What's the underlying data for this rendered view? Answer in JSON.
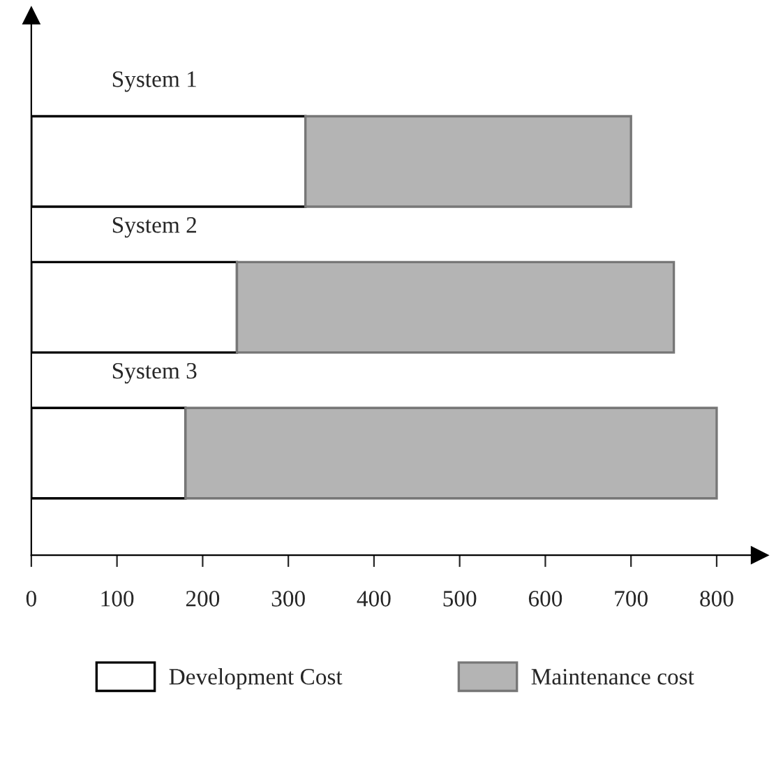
{
  "chart_data": {
    "type": "bar",
    "orientation": "horizontal",
    "stacked": true,
    "categories": [
      "System 1",
      "System 2",
      "System 3"
    ],
    "series": [
      {
        "name": "Development Cost",
        "color": "#ffffff",
        "values": [
          320,
          240,
          180
        ]
      },
      {
        "name": "Maintenance cost",
        "color": "#b4b4b4",
        "values": [
          380,
          510,
          620
        ]
      }
    ],
    "xlim": [
      0,
      850
    ],
    "xticks": [
      0,
      100,
      200,
      300,
      400,
      500,
      600,
      700,
      800
    ],
    "tick_labels": "x",
    "grid": false,
    "legend": "bottom"
  }
}
